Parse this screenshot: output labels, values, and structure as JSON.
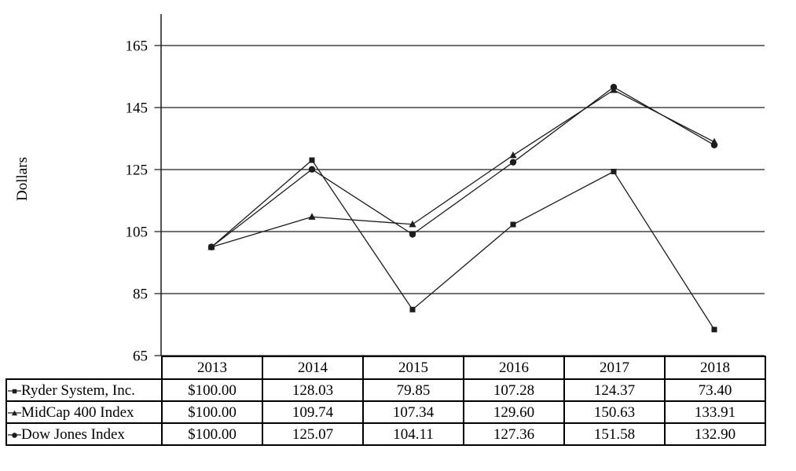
{
  "chart_data": {
    "type": "line",
    "title": "",
    "ylabel": "Dollars",
    "xlabel": "",
    "x": [
      "2013",
      "2014",
      "2015",
      "2016",
      "2017",
      "2018"
    ],
    "yticks": [
      65,
      85,
      105,
      125,
      145,
      165
    ],
    "ylim": [
      65,
      165
    ],
    "grid": "horizontal-only",
    "legend_position": "table-left-column",
    "color": "#1c1c1c",
    "background": "#ffffff",
    "series": [
      {
        "name": "Ryder System, Inc.",
        "marker": "square",
        "values": [
          100.0,
          128.03,
          79.85,
          107.28,
          124.37,
          73.4
        ]
      },
      {
        "name": "MidCap 400 Index",
        "marker": "triangle",
        "values": [
          100.0,
          109.74,
          107.34,
          129.6,
          150.63,
          133.91
        ]
      },
      {
        "name": "Dow Jones Index",
        "marker": "circle",
        "values": [
          100.0,
          125.07,
          104.11,
          127.36,
          151.58,
          132.9
        ]
      }
    ]
  },
  "table": {
    "rows": [
      {
        "label": "Ryder System, Inc.",
        "marker": "square",
        "values": [
          "$100.00",
          "128.03",
          "79.85",
          "107.28",
          "124.37",
          "73.40"
        ]
      },
      {
        "label": "MidCap 400 Index",
        "marker": "triangle",
        "values": [
          "$100.00",
          "109.74",
          "107.34",
          "129.60",
          "150.63",
          "133.91"
        ]
      },
      {
        "label": "Dow Jones Index",
        "marker": "circle",
        "values": [
          "$100.00",
          "125.07",
          "104.11",
          "127.36",
          "151.58",
          "132.90"
        ]
      }
    ]
  }
}
